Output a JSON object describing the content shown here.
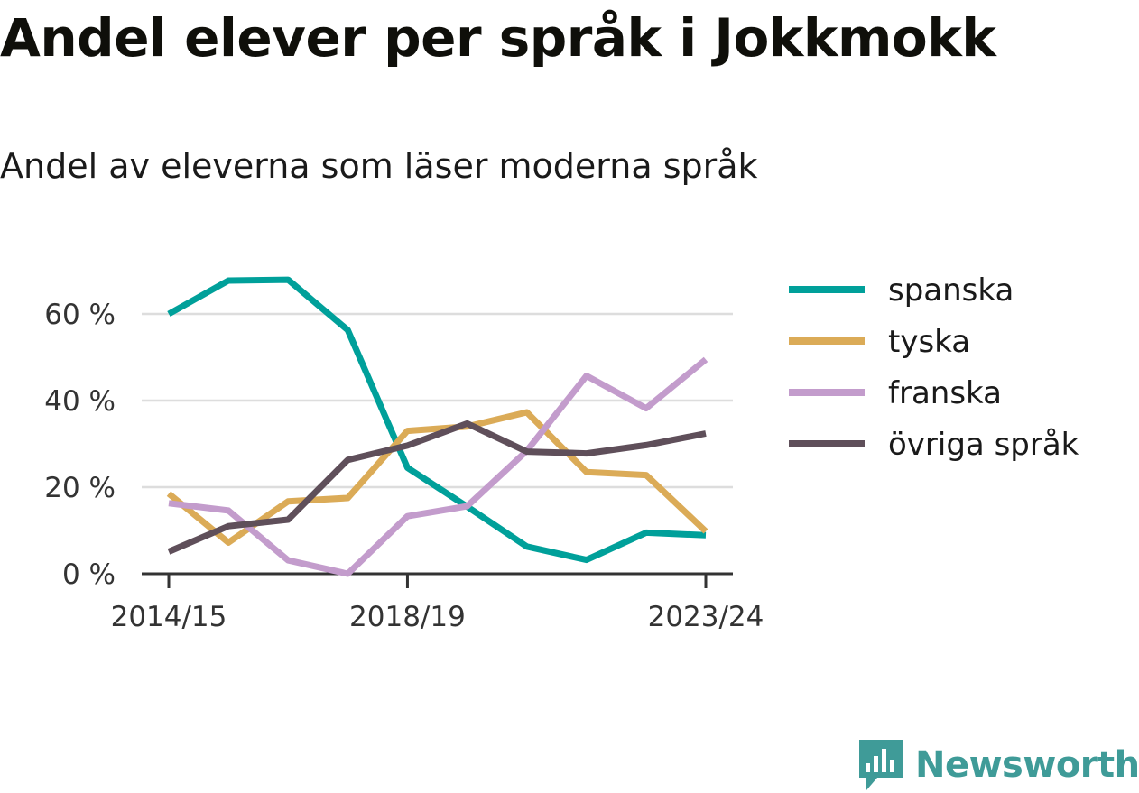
{
  "header": {
    "title": "Andel elever per språk i Jokkmokk",
    "subtitle": "Andel av eleverna som läser moderna språk"
  },
  "brand": {
    "name": "Newsworthy",
    "icon": "bar-chart-badge-icon",
    "color": "#3f9b98"
  },
  "chart_data": {
    "type": "line",
    "title": "Andel elever per språk i Jokkmokk",
    "subtitle": "Andel av eleverna som läser moderna språk",
    "xlabel": "",
    "ylabel": "",
    "x": [
      "2014/15",
      "2015/16",
      "2016/17",
      "2017/18",
      "2018/19",
      "2019/20",
      "2020/21",
      "2021/22",
      "2022/23",
      "2023/24"
    ],
    "x_tick_labels": [
      "2014/15",
      "2018/19",
      "2023/24"
    ],
    "y_ticks": [
      0,
      20,
      40,
      60
    ],
    "y_tick_labels": [
      "0 %",
      "20 %",
      "40 %",
      "60 %"
    ],
    "ylim": [
      0,
      70
    ],
    "grid": true,
    "legend_position": "right",
    "series": [
      {
        "name": "spanska",
        "color": "#00a09a",
        "values": [
          60,
          67.7,
          67.9,
          56.3,
          24.5,
          15.5,
          6.3,
          3.2,
          9.5,
          8.9
        ]
      },
      {
        "name": "tyska",
        "color": "#dbab57",
        "values": [
          18.5,
          7.2,
          16.7,
          17.5,
          33.0,
          34.0,
          37.3,
          23.5,
          22.8,
          9.8
        ]
      },
      {
        "name": "franska",
        "color": "#c39ccc",
        "values": [
          16.3,
          14.6,
          3.1,
          0,
          13.3,
          15.6,
          28.4,
          45.7,
          38.2,
          49.5
        ]
      },
      {
        "name": "övriga språk",
        "color": "#5f4f5a",
        "values": [
          5.1,
          11.0,
          12.5,
          26.3,
          29.6,
          34.7,
          28.2,
          27.8,
          29.7,
          32.4
        ]
      }
    ]
  }
}
